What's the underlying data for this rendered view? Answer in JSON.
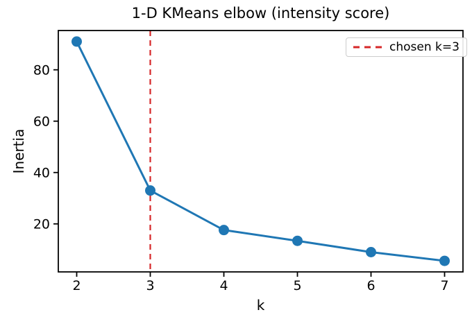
{
  "chart_data": {
    "type": "line",
    "title": "1-D KMeans elbow (intensity score)",
    "xlabel": "k",
    "ylabel": "Inertia",
    "x": [
      2,
      3,
      4,
      5,
      6,
      7
    ],
    "values": [
      91,
      33,
      17.6,
      13.4,
      9,
      5.6
    ],
    "series_color": "#1f77b4",
    "marker": "circle",
    "line_width": 3,
    "marker_radius": 7.5,
    "vline": {
      "x": 3,
      "color": "#d62728",
      "style": "dashed",
      "label": "chosen k=3"
    },
    "xlim": [
      1.75,
      7.25
    ],
    "ylim": [
      1.3,
      95.3
    ],
    "xticks": [
      2,
      3,
      4,
      5,
      6,
      7
    ],
    "yticks": [
      20,
      40,
      60,
      80
    ],
    "grid": false,
    "legend": {
      "position": "upper right",
      "entries": [
        {
          "label": "chosen k=3",
          "color": "#d62728",
          "line_style": "dashed"
        }
      ]
    },
    "axis_color": "#000000",
    "background_color": "#ffffff"
  }
}
